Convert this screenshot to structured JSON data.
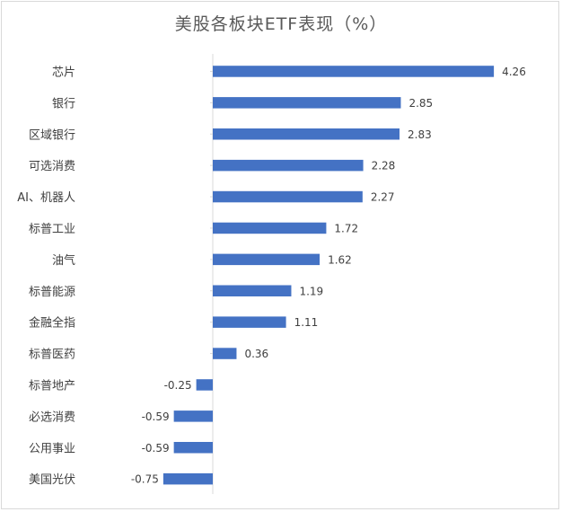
{
  "chart_data": {
    "type": "bar",
    "orientation": "horizontal",
    "title": "美股各板块ETF表现（%）",
    "categories": [
      "芯片",
      "银行",
      "区域银行",
      "可选消费",
      "AI、机器人",
      "标普工业",
      "油气",
      "标普能源",
      "金融全指",
      "标普医药",
      "标普地产",
      "必选消费",
      "公用事业",
      "美国光伏"
    ],
    "values": [
      4.26,
      2.85,
      2.83,
      2.28,
      2.27,
      1.72,
      1.62,
      1.19,
      1.11,
      0.36,
      -0.25,
      -0.59,
      -0.59,
      -0.75
    ],
    "value_labels": [
      "4.26",
      "2.85",
      "2.83",
      "2.28",
      "2.27",
      "1.72",
      "1.62",
      "1.19",
      "1.11",
      "0.36",
      "-0.25",
      "-0.59",
      "-0.59",
      "-0.75"
    ],
    "bar_color": "#4472c4",
    "grid": false,
    "legend": false
  }
}
